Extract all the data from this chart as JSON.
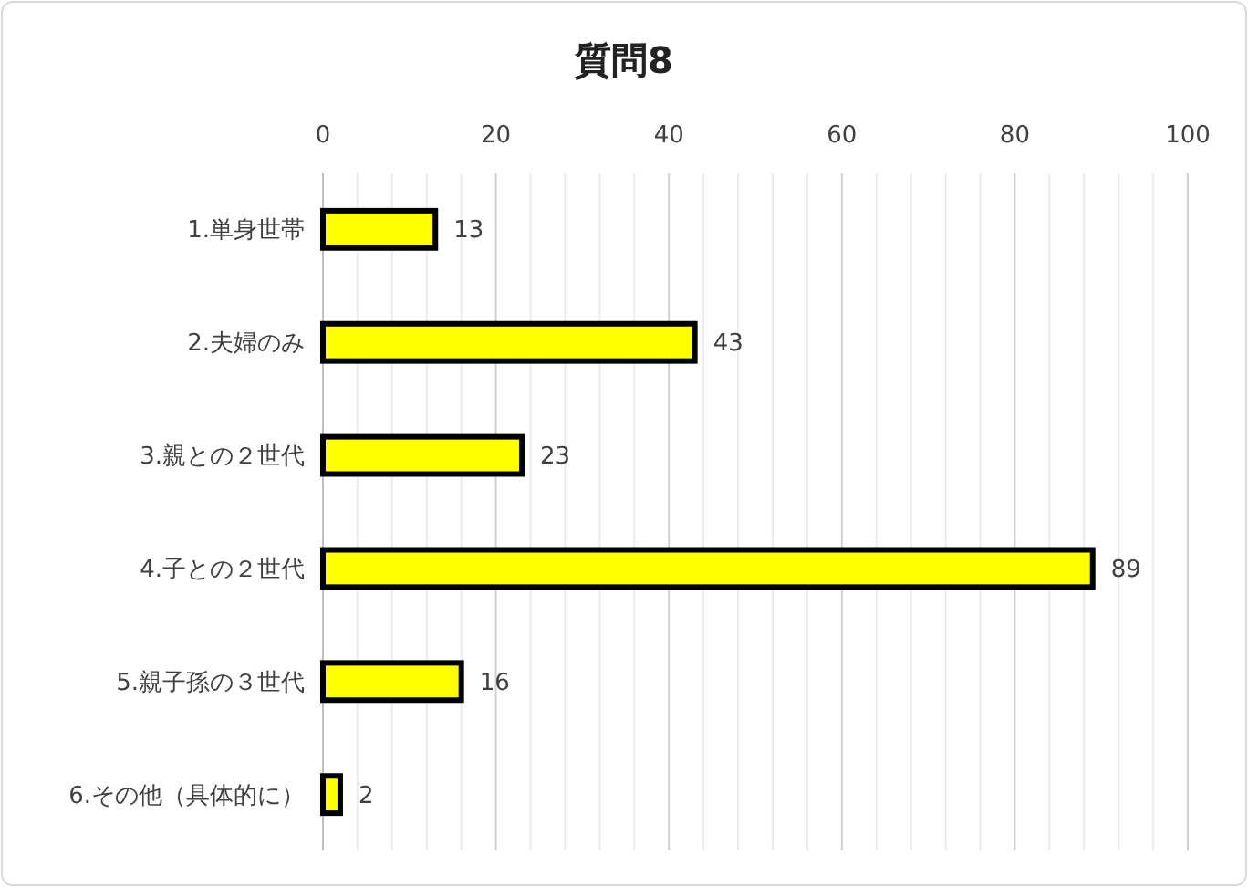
{
  "chart_data": {
    "type": "bar",
    "orientation": "horizontal",
    "title": "質問8",
    "categories": [
      "1.単身世帯",
      "2.夫婦のみ",
      "3.親との２世代",
      "4.子との２世代",
      "5.親子孫の３世代",
      "6.その他（具体的に）"
    ],
    "values": [
      13,
      43,
      23,
      89,
      16,
      2
    ],
    "color": "#ffff00",
    "data_labels": true,
    "grid": "x",
    "xlim": [
      0,
      100
    ],
    "xticks": [
      0,
      {
        "value": 4,
        "label": null
      },
      {
        "value": 8,
        "label": null
      },
      {
        "value": 12,
        "label": null
      },
      {
        "value": 16,
        "label": null
      },
      20,
      {
        "value": 24,
        "label": null
      },
      {
        "value": 28,
        "label": null
      },
      {
        "value": 32,
        "label": null
      },
      {
        "value": 36,
        "label": null
      },
      40,
      {
        "value": 44,
        "label": null
      },
      {
        "value": 48,
        "label": null
      },
      {
        "value": 52,
        "label": null
      },
      {
        "value": 56,
        "label": null
      },
      60,
      {
        "value": 64,
        "label": null
      },
      {
        "value": 68,
        "label": null
      },
      {
        "value": 72,
        "label": null
      },
      {
        "value": 76,
        "label": null
      },
      80,
      {
        "value": 84,
        "label": null
      },
      {
        "value": 88,
        "label": null
      },
      {
        "value": 92,
        "label": null
      },
      {
        "value": 96,
        "label": null
      },
      100
    ]
  }
}
